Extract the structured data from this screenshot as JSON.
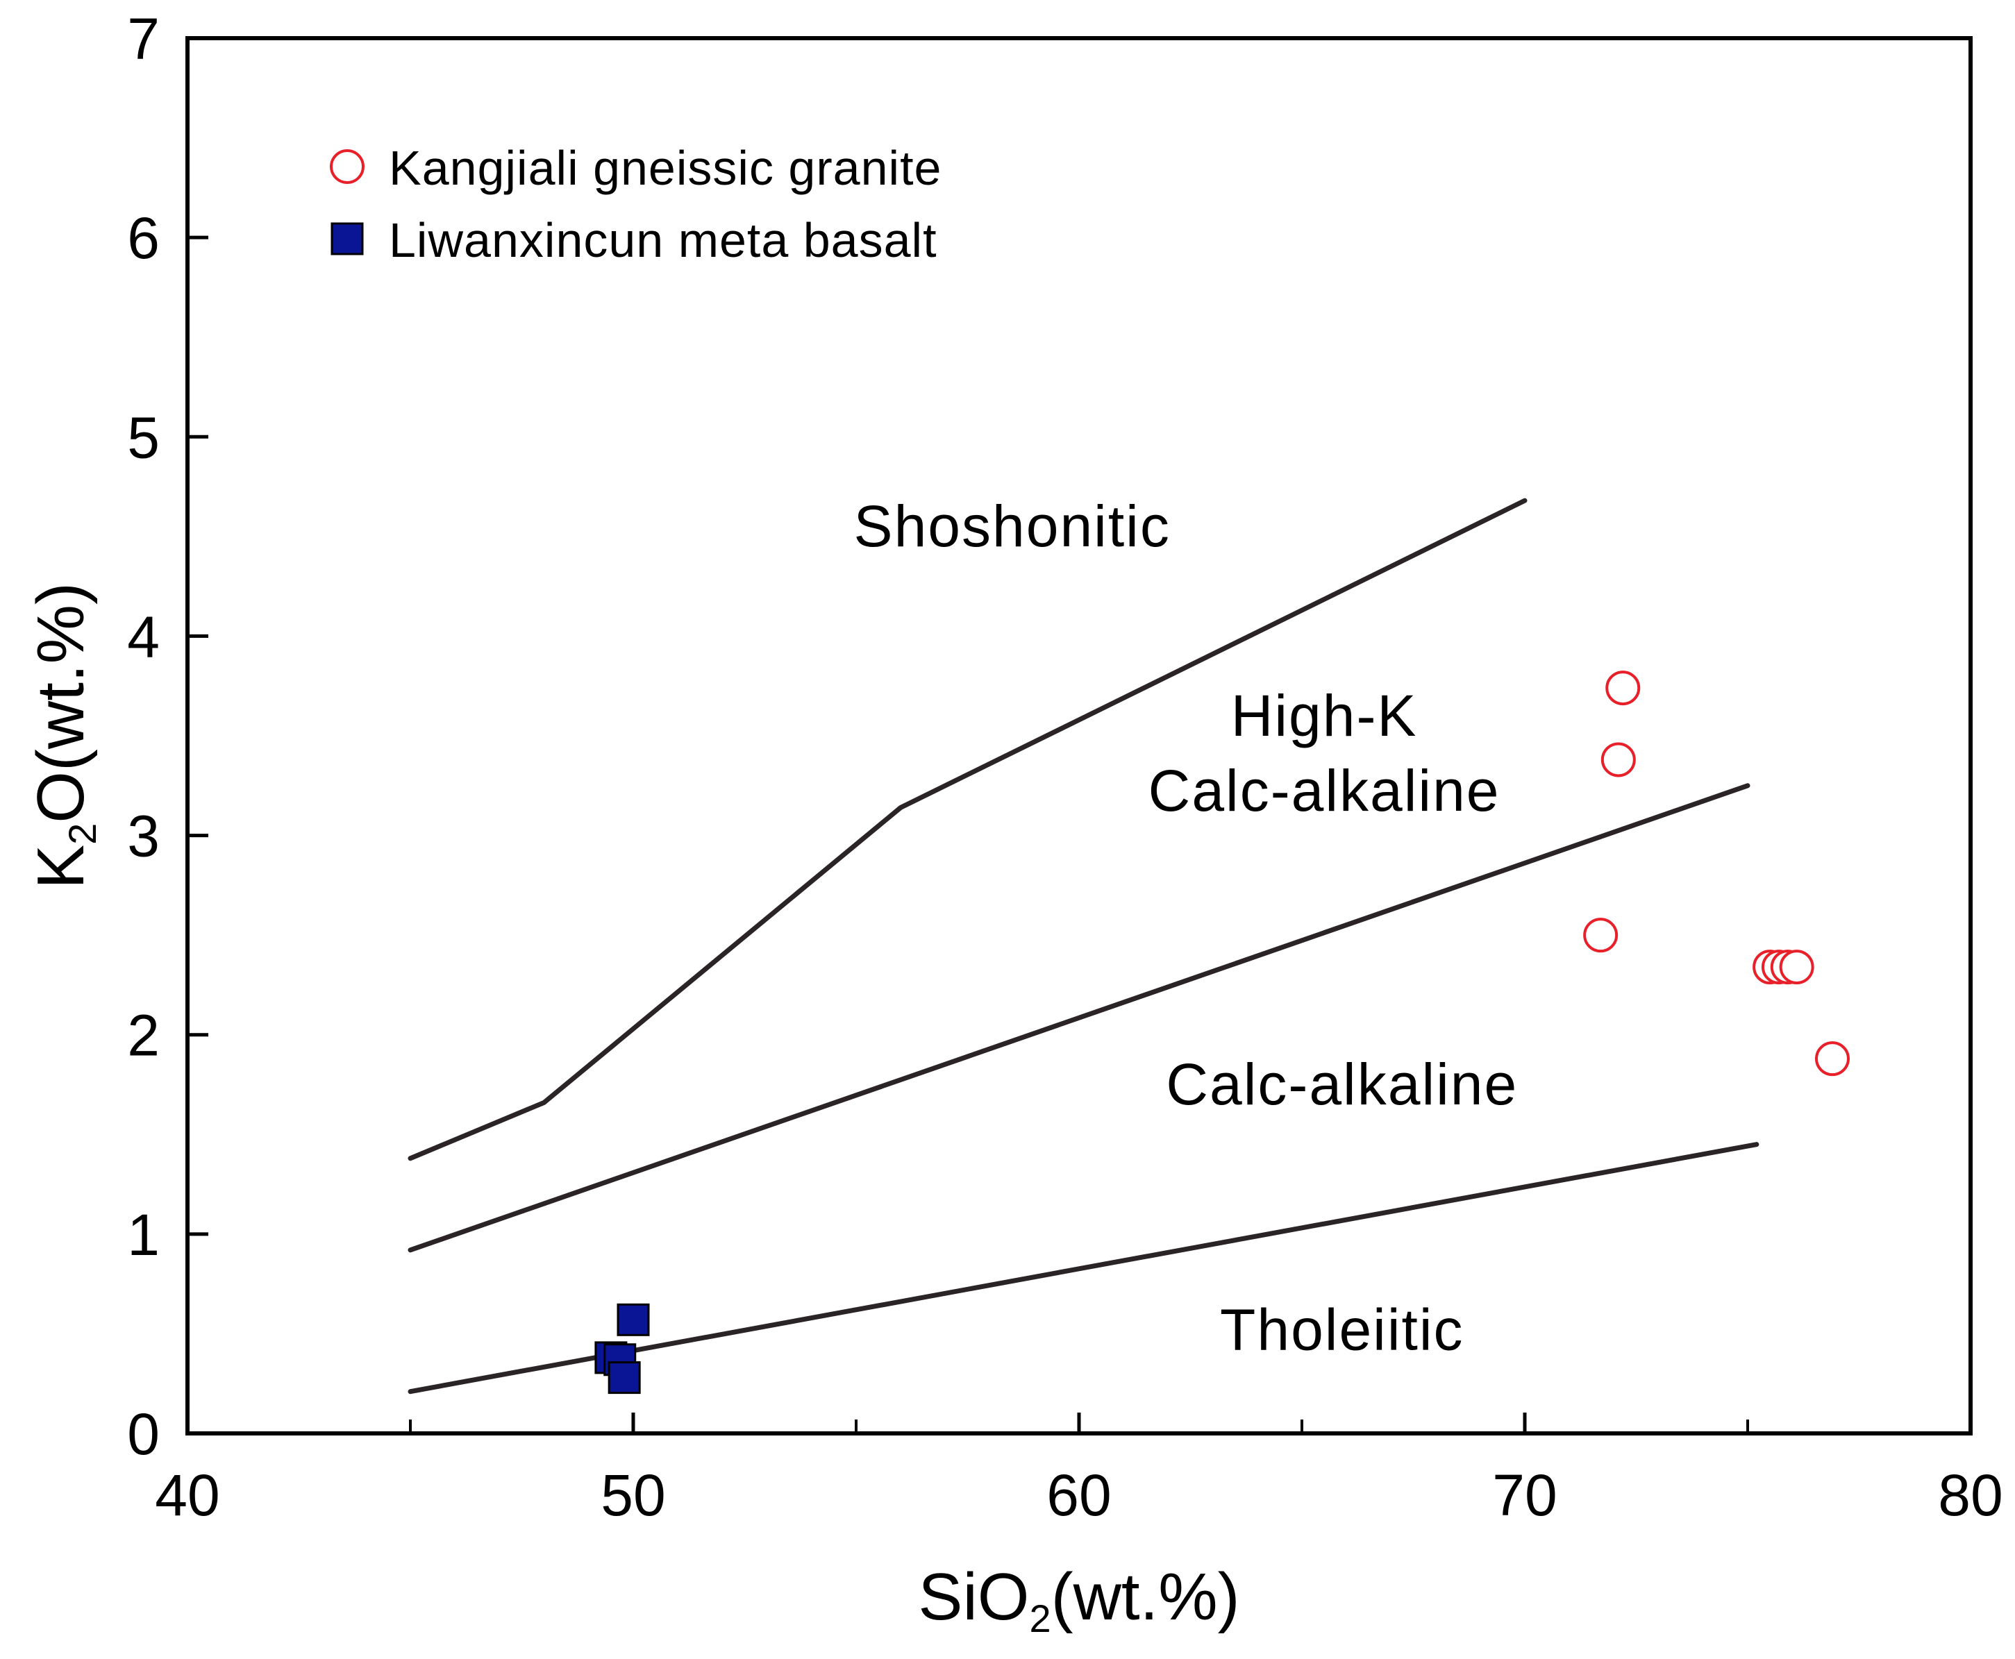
{
  "chart_data": {
    "type": "scatter",
    "title": "",
    "xlabel": {
      "main": "SiO",
      "sub": "2",
      "suffix": "(wt.%)"
    },
    "ylabel": {
      "main": "K",
      "sub": "2",
      "suffix": "O(wt.%)"
    },
    "xlim": [
      40,
      80
    ],
    "ylim": [
      0,
      7
    ],
    "grid": false,
    "x_ticks": [
      40,
      50,
      60,
      70,
      80
    ],
    "x_minor_ticks": [
      45,
      55,
      65,
      75
    ],
    "y_ticks": [
      0,
      1,
      2,
      3,
      4,
      5,
      6,
      7
    ],
    "x_tick_labels": [
      "40",
      "50",
      "60",
      "70",
      "80"
    ],
    "y_tick_labels": [
      "0",
      "1",
      "2",
      "3",
      "4",
      "5",
      "6",
      "7"
    ],
    "boundaries": [
      {
        "name": "shoshonitic-boundary",
        "points": [
          [
            45,
            1.38
          ],
          [
            48,
            1.66
          ],
          [
            56,
            3.14
          ],
          [
            70,
            4.68
          ]
        ]
      },
      {
        "name": "high-k-boundary",
        "points": [
          [
            45,
            0.92
          ],
          [
            75,
            3.25
          ]
        ]
      },
      {
        "name": "calc-alkaline-boundary",
        "points": [
          [
            45,
            0.21
          ],
          [
            75.2,
            1.45
          ]
        ]
      }
    ],
    "field_labels": [
      {
        "name": "field-label-shoshonitic",
        "lines": [
          "Shoshonitic"
        ],
        "x": 58.5,
        "y": 4.45
      },
      {
        "name": "field-label-high-k",
        "lines": [
          "High-K",
          "Calc-alkaline"
        ],
        "x": 65.5,
        "y": 3.5
      },
      {
        "name": "field-label-calc-alkaline",
        "lines": [
          "Calc-alkaline"
        ],
        "x": 65.9,
        "y": 1.65
      },
      {
        "name": "field-label-tholeiitic",
        "lines": [
          "Tholeiitic"
        ],
        "x": 65.9,
        "y": 0.42
      }
    ],
    "series": [
      {
        "name": "Kangjiali gneissic granite",
        "marker": "circle-open",
        "color": "#e8202a",
        "points": [
          [
            72.2,
            3.74
          ],
          [
            72.1,
            3.38
          ],
          [
            71.7,
            2.5
          ],
          [
            75.5,
            2.34
          ],
          [
            75.7,
            2.34
          ],
          [
            75.9,
            2.34
          ],
          [
            76.1,
            2.34
          ],
          [
            76.9,
            1.88
          ]
        ]
      },
      {
        "name": "Liwanxincun meta basalt",
        "marker": "square-filled",
        "color": "#0a1596",
        "points": [
          [
            50.0,
            0.57
          ],
          [
            49.5,
            0.38
          ],
          [
            49.7,
            0.37
          ],
          [
            49.8,
            0.28
          ]
        ]
      }
    ],
    "legend": {
      "placement": "top-left"
    }
  }
}
